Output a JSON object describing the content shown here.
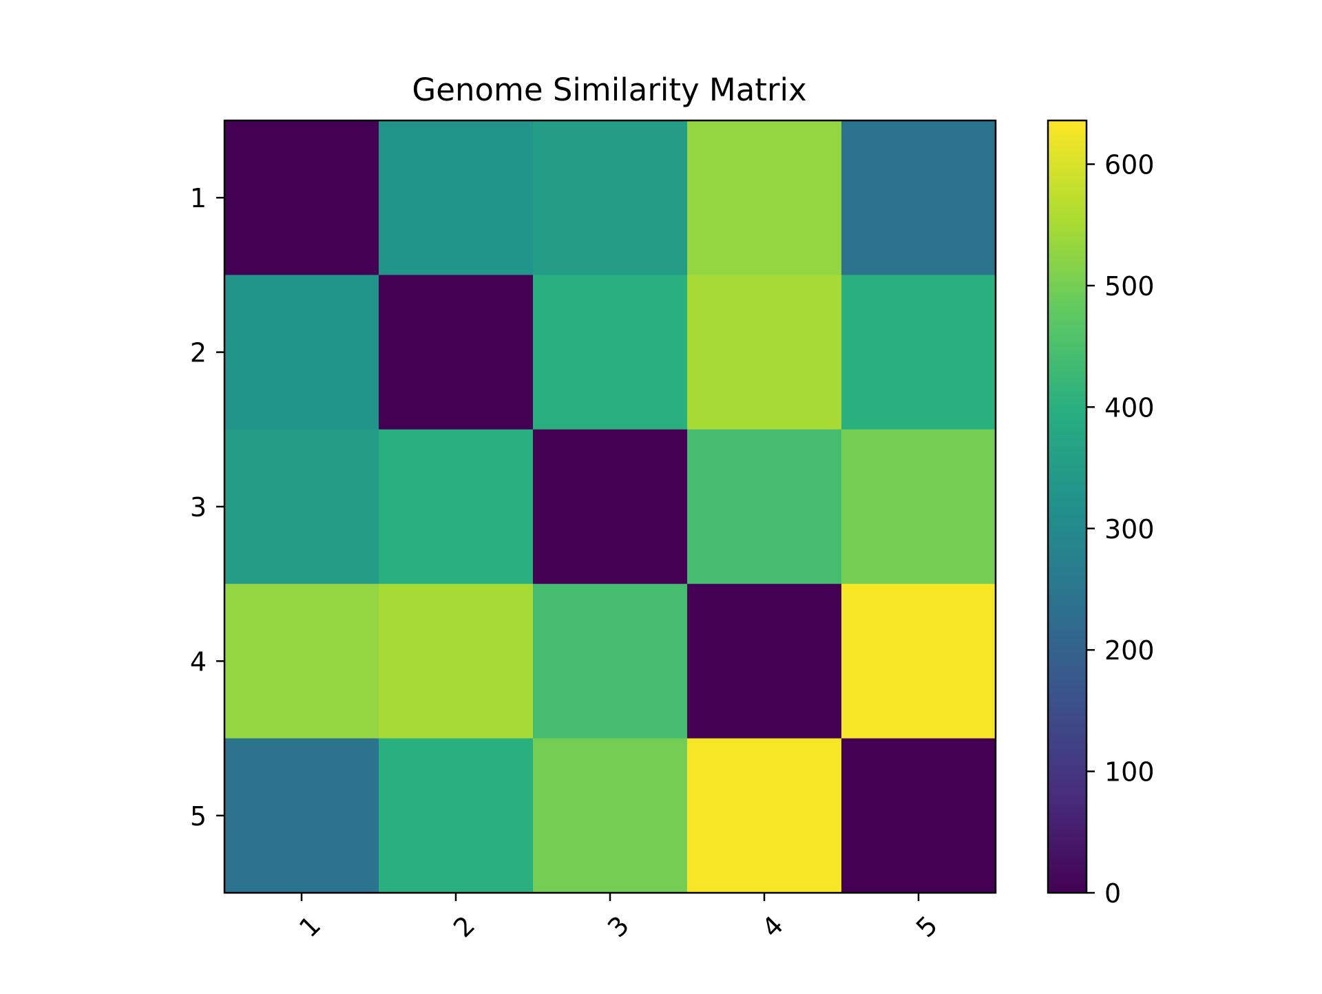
{
  "chart_data": {
    "type": "heatmap",
    "title": "Genome Similarity Matrix",
    "xlabel": "",
    "ylabel": "",
    "x_categories": [
      "1",
      "2",
      "3",
      "4",
      "5"
    ],
    "y_categories": [
      "1",
      "2",
      "3",
      "4",
      "5"
    ],
    "x_tick_rotation_deg": 45,
    "values": [
      [
        0,
        330,
        350,
        530,
        240
      ],
      [
        330,
        0,
        400,
        550,
        400
      ],
      [
        350,
        400,
        0,
        440,
        500
      ],
      [
        530,
        550,
        440,
        0,
        630
      ],
      [
        240,
        400,
        500,
        630,
        0
      ]
    ],
    "colormap": "viridis",
    "colorbar": {
      "range": [
        0,
        636
      ],
      "ticks": [
        0,
        100,
        200,
        300,
        400,
        500,
        600
      ],
      "tick_labels": [
        "0",
        "100",
        "200",
        "300",
        "400",
        "500",
        "600"
      ]
    },
    "grid": false,
    "legend": "none"
  }
}
